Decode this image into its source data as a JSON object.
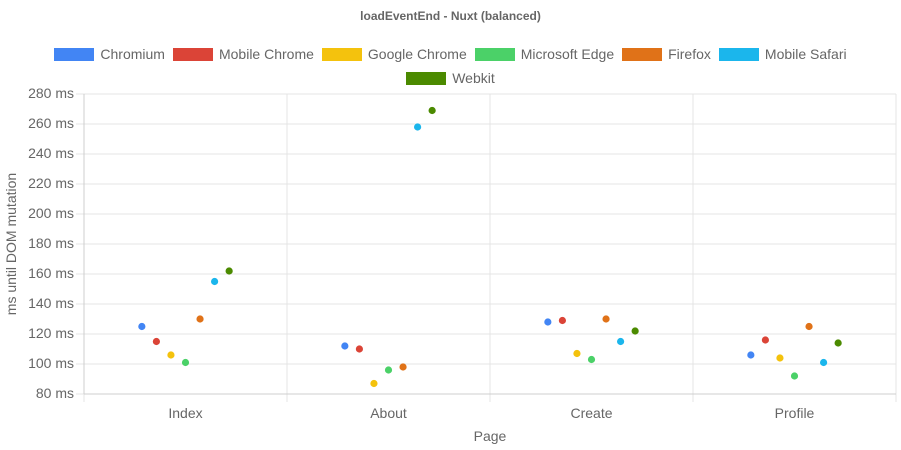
{
  "chart_data": {
    "type": "scatter",
    "title": "loadEventEnd - Nuxt (balanced)",
    "xlabel": "Page",
    "ylabel": "ms until DOM mutation",
    "categories": [
      "Index",
      "About",
      "Create",
      "Profile"
    ],
    "ylim": [
      80,
      280
    ],
    "ystep": 20,
    "ytick_suffix": " ms",
    "grid": true,
    "legend_position": "top",
    "series": [
      {
        "name": "Chromium",
        "color": "#4285f4",
        "values": [
          125,
          112,
          128,
          106
        ]
      },
      {
        "name": "Mobile Chrome",
        "color": "#db4437",
        "values": [
          115,
          110,
          129,
          116
        ]
      },
      {
        "name": "Google Chrome",
        "color": "#f4c20d",
        "values": [
          106,
          87,
          107,
          104
        ]
      },
      {
        "name": "Microsoft Edge",
        "color": "#4bd168",
        "values": [
          101,
          96,
          103,
          92
        ]
      },
      {
        "name": "Firefox",
        "color": "#e07218",
        "values": [
          130,
          98,
          130,
          125
        ]
      },
      {
        "name": "Mobile Safari",
        "color": "#1bb6ec",
        "values": [
          155,
          258,
          115,
          101
        ]
      },
      {
        "name": "Webkit",
        "color": "#4b8a00",
        "values": [
          162,
          269,
          122,
          114
        ]
      }
    ]
  }
}
